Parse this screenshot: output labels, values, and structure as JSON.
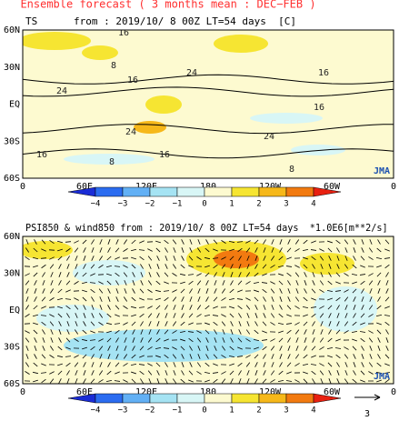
{
  "header": {
    "title": "Ensemble forecast ( 3 months mean : DEC−FEB )"
  },
  "panels": [
    {
      "title": "TS      from : 2019/10/ 8 00Z LT=54 days  [C]",
      "lat_labels": [
        "60N",
        "30N",
        "EQ",
        "30S",
        "60S"
      ],
      "lon_labels": [
        "0",
        "60E",
        "120E",
        "180",
        "120W",
        "60W",
        "0"
      ],
      "colorbar_labels": [
        "−4",
        "−3",
        "−2",
        "−1",
        "0",
        "1",
        "2",
        "3",
        "4"
      ],
      "contour_labels": [
        "16",
        "8",
        "16",
        "24",
        "24",
        "16",
        "24",
        "16",
        "24",
        "16",
        "8",
        "8",
        "16"
      ],
      "logo": "JMA"
    },
    {
      "title": "PSI850 & wind850 from : 2019/10/ 8 00Z LT=54 days  *1.0E6[m**2/s]",
      "lat_labels": [
        "60N",
        "30N",
        "EQ",
        "30S",
        "60S"
      ],
      "lon_labels": [
        "0",
        "60E",
        "120E",
        "180",
        "120W",
        "60W",
        "0"
      ],
      "colorbar_labels": [
        "−4",
        "−3",
        "−2",
        "−1",
        "0",
        "1",
        "2",
        "3",
        "4"
      ],
      "logo": "JMA",
      "vector_scale": "3"
    }
  ]
}
